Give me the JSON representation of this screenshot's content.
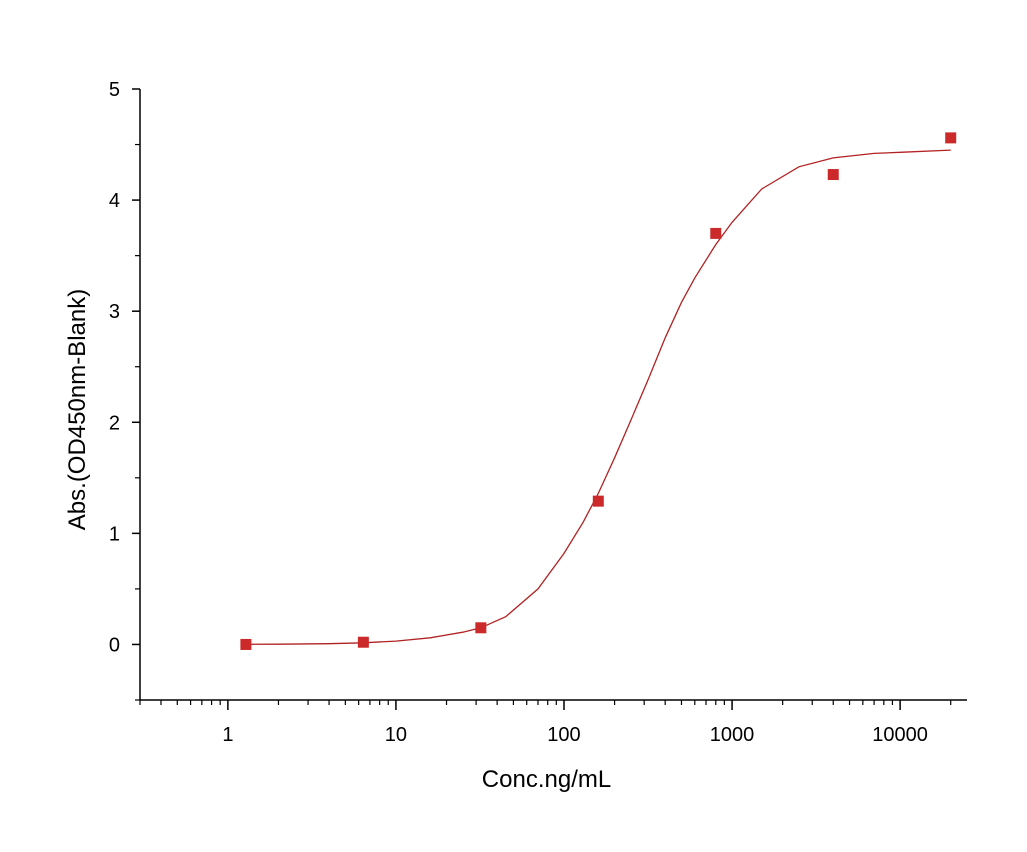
{
  "chart_data": {
    "type": "scatter",
    "xlabel": "Conc.ng/mL",
    "ylabel": "Abs.(OD450nm-Blank)",
    "xscale": "log",
    "xlim": [
      0.3,
      25000
    ],
    "ylim": [
      -0.5,
      5
    ],
    "xticks": [
      {
        "value": 1,
        "label": "1"
      },
      {
        "value": 10,
        "label": "10"
      },
      {
        "value": 100,
        "label": "100"
      },
      {
        "value": 1000,
        "label": "1000"
      },
      {
        "value": 10000,
        "label": "10000"
      }
    ],
    "yticks": [
      {
        "value": 0,
        "label": "0"
      },
      {
        "value": 1,
        "label": "1"
      },
      {
        "value": 2,
        "label": "2"
      },
      {
        "value": 3,
        "label": "3"
      },
      {
        "value": 4,
        "label": "4"
      },
      {
        "value": 5,
        "label": "5"
      }
    ],
    "grid": false,
    "legend": "none",
    "series": [
      {
        "kind": "points",
        "marker": "square",
        "color": "#cc2a2a",
        "x": [
          1.28,
          6.4,
          32,
          160,
          800,
          4000,
          20000
        ],
        "y": [
          0.0,
          0.02,
          0.15,
          1.29,
          3.7,
          4.23,
          4.56
        ]
      },
      {
        "kind": "fit-line",
        "color": "#b22222",
        "x": [
          1.28,
          2,
          4,
          6.4,
          10,
          16,
          25,
          32,
          45,
          70,
          100,
          130,
          160,
          200,
          250,
          320,
          400,
          500,
          600,
          800,
          1000,
          1500,
          2500,
          4000,
          7000,
          10000,
          20000
        ],
        "y": [
          0.001,
          0.002,
          0.007,
          0.015,
          0.03,
          0.06,
          0.11,
          0.15,
          0.25,
          0.5,
          0.82,
          1.1,
          1.36,
          1.68,
          2.02,
          2.4,
          2.76,
          3.08,
          3.3,
          3.6,
          3.8,
          4.1,
          4.3,
          4.38,
          4.42,
          4.43,
          4.45
        ]
      }
    ]
  }
}
